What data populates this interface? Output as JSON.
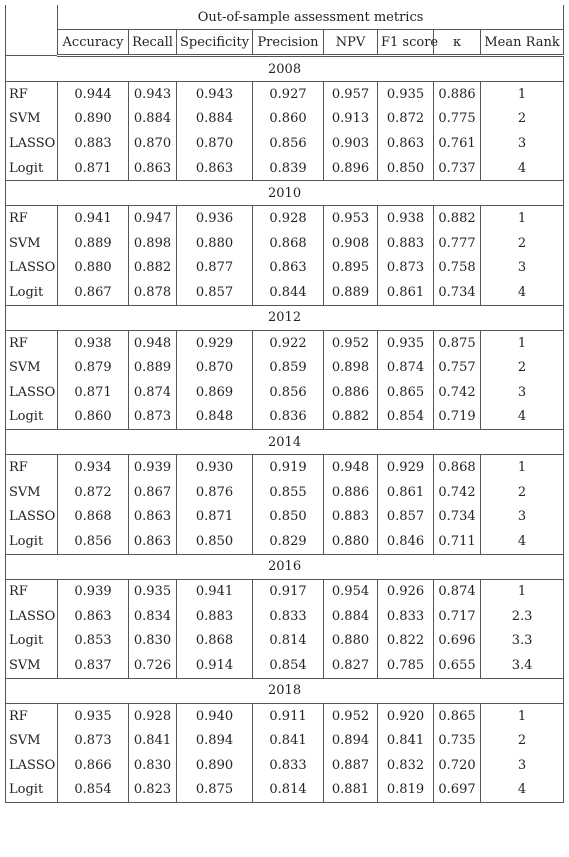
{
  "header": {
    "title": "Out-of-sample assessment metrics",
    "columns": [
      "Accuracy",
      "Recall",
      "Specificity",
      "Precision",
      "NPV",
      "F1 score",
      "κ",
      "Mean Rank"
    ]
  },
  "groups": [
    {
      "year": "2008",
      "rows": [
        [
          "RF",
          "0.944",
          "0.943",
          "0.943",
          "0.927",
          "0.957",
          "0.935",
          "0.886",
          "1"
        ],
        [
          "SVM",
          "0.890",
          "0.884",
          "0.884",
          "0.860",
          "0.913",
          "0.872",
          "0.775",
          "2"
        ],
        [
          "LASSO",
          "0.883",
          "0.870",
          "0.870",
          "0.856",
          "0.903",
          "0.863",
          "0.761",
          "3"
        ],
        [
          "Logit",
          "0.871",
          "0.863",
          "0.863",
          "0.839",
          "0.896",
          "0.850",
          "0.737",
          "4"
        ]
      ]
    },
    {
      "year": "2010",
      "rows": [
        [
          "RF",
          "0.941",
          "0.947",
          "0.936",
          "0.928",
          "0.953",
          "0.938",
          "0.882",
          "1"
        ],
        [
          "SVM",
          "0.889",
          "0.898",
          "0.880",
          "0.868",
          "0.908",
          "0.883",
          "0.777",
          "2"
        ],
        [
          "LASSO",
          "0.880",
          "0.882",
          "0.877",
          "0.863",
          "0.895",
          "0.873",
          "0.758",
          "3"
        ],
        [
          "Logit",
          "0.867",
          "0.878",
          "0.857",
          "0.844",
          "0.889",
          "0.861",
          "0.734",
          "4"
        ]
      ]
    },
    {
      "year": "2012",
      "rows": [
        [
          "RF",
          "0.938",
          "0.948",
          "0.929",
          "0.922",
          "0.952",
          "0.935",
          "0.875",
          "1"
        ],
        [
          "SVM",
          "0.879",
          "0.889",
          "0.870",
          "0.859",
          "0.898",
          "0.874",
          "0.757",
          "2"
        ],
        [
          "LASSO",
          "0.871",
          "0.874",
          "0.869",
          "0.856",
          "0.886",
          "0.865",
          "0.742",
          "3"
        ],
        [
          "Logit",
          "0.860",
          "0.873",
          "0.848",
          "0.836",
          "0.882",
          "0.854",
          "0.719",
          "4"
        ]
      ]
    },
    {
      "year": "2014",
      "rows": [
        [
          "RF",
          "0.934",
          "0.939",
          "0.930",
          "0.919",
          "0.948",
          "0.929",
          "0.868",
          "1"
        ],
        [
          "SVM",
          "0.872",
          "0.867",
          "0.876",
          "0.855",
          "0.886",
          "0.861",
          "0.742",
          "2"
        ],
        [
          "LASSO",
          "0.868",
          "0.863",
          "0.871",
          "0.850",
          "0.883",
          "0.857",
          "0.734",
          "3"
        ],
        [
          "Logit",
          "0.856",
          "0.863",
          "0.850",
          "0.829",
          "0.880",
          "0.846",
          "0.711",
          "4"
        ]
      ]
    },
    {
      "year": "2016",
      "rows": [
        [
          "RF",
          "0.939",
          "0.935",
          "0.941",
          "0.917",
          "0.954",
          "0.926",
          "0.874",
          "1"
        ],
        [
          "LASSO",
          "0.863",
          "0.834",
          "0.883",
          "0.833",
          "0.884",
          "0.833",
          "0.717",
          "2.3"
        ],
        [
          "Logit",
          "0.853",
          "0.830",
          "0.868",
          "0.814",
          "0.880",
          "0.822",
          "0.696",
          "3.3"
        ],
        [
          "SVM",
          "0.837",
          "0.726",
          "0.914",
          "0.854",
          "0.827",
          "0.785",
          "0.655",
          "3.4"
        ]
      ]
    },
    {
      "year": "2018",
      "rows": [
        [
          "RF",
          "0.935",
          "0.928",
          "0.940",
          "0.911",
          "0.952",
          "0.920",
          "0.865",
          "1"
        ],
        [
          "SVM",
          "0.873",
          "0.841",
          "0.894",
          "0.841",
          "0.894",
          "0.841",
          "0.735",
          "2"
        ],
        [
          "LASSO",
          "0.866",
          "0.830",
          "0.890",
          "0.833",
          "0.887",
          "0.832",
          "0.720",
          "3"
        ],
        [
          "Logit",
          "0.854",
          "0.823",
          "0.875",
          "0.814",
          "0.881",
          "0.819",
          "0.697",
          "4"
        ]
      ]
    }
  ]
}
